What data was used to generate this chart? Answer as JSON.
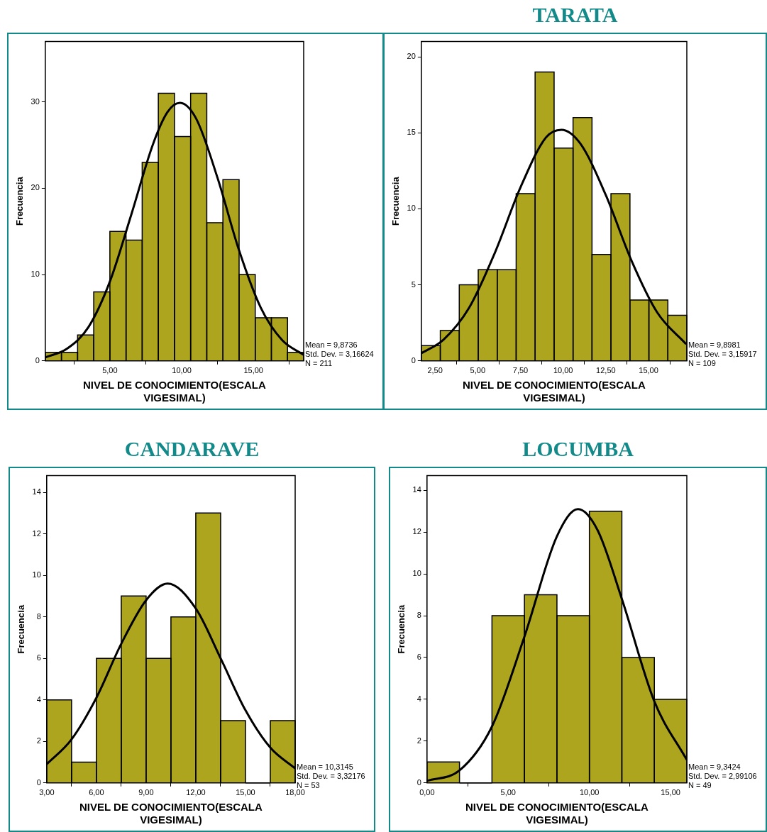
{
  "chart_data": [
    {
      "type": "histogram",
      "xlabel": "NIVEL DE CONOCIMIENTO(ESCALA VIGESIMAL)",
      "ylabel": "Frecuencia",
      "color": "#ada51e",
      "bins": [
        0.5,
        1.625,
        2.75,
        3.875,
        5,
        6.125,
        7.25,
        8.375,
        9.5,
        10.625,
        11.75,
        12.875,
        14,
        15.125,
        16.25,
        17.375,
        18.5
      ],
      "values": [
        1,
        1,
        3,
        8,
        15,
        14,
        23,
        31,
        26,
        31,
        16,
        21,
        10,
        5,
        5,
        1
      ],
      "series": [
        {
          "type": "line",
          "color": "#000000",
          "x": [
            0.5,
            2,
            3.5,
            5,
            6.5,
            8,
            9,
            9.87,
            11,
            12.5,
            14,
            15.5,
            17,
            18.5
          ],
          "values": [
            0.4,
            1.4,
            3.9,
            9.2,
            17,
            25.1,
            28.8,
            29.9,
            28.1,
            21.2,
            12.8,
            6.2,
            2.4,
            0.7
          ]
        }
      ],
      "xlim": [
        0.5,
        18.5
      ],
      "xticks": [
        {
          "value": 5,
          "label": "5,00"
        },
        {
          "value": 10,
          "label": "10,00"
        },
        {
          "value": 15,
          "label": "15,00"
        }
      ],
      "ylim": [
        0,
        37
      ],
      "yticks": [
        0,
        10,
        20,
        30
      ],
      "grid": false,
      "annotations": [
        "Mean = 9,8736",
        "Std. Dev. = 3,16624",
        "N = 211"
      ]
    },
    {
      "type": "histogram",
      "title": "TARATA",
      "xlabel": "NIVEL DE CONOCIMIENTO(ESCALA VIGESIMAL)",
      "ylabel": "Frecuencia",
      "color": "#ada51e",
      "bins": [
        1.7,
        2.81,
        3.92,
        5.03,
        6.14,
        7.25,
        8.36,
        9.47,
        10.58,
        11.69,
        12.8,
        13.91,
        15.02,
        16.13,
        17.24
      ],
      "values": [
        1,
        2,
        5,
        6,
        6,
        11,
        19,
        14,
        16,
        7,
        11,
        4,
        4,
        3
      ],
      "series": [
        {
          "type": "line",
          "color": "#000000",
          "x": [
            1.7,
            3,
            4.5,
            6,
            7.5,
            9,
            9.9,
            11,
            12.5,
            14,
            15.5,
            17.2
          ],
          "values": [
            0.5,
            1.4,
            3.5,
            7.1,
            11.4,
            14.7,
            15.2,
            14.3,
            10.9,
            6.6,
            3.2,
            1.1
          ]
        }
      ],
      "xlim": [
        1.7,
        17.24
      ],
      "xticks": [
        {
          "value": 2.5,
          "label": "2,50"
        },
        {
          "value": 5,
          "label": "5,00"
        },
        {
          "value": 7.5,
          "label": "7,50"
        },
        {
          "value": 10,
          "label": "10,00"
        },
        {
          "value": 12.5,
          "label": "12,50"
        },
        {
          "value": 15,
          "label": "15,00"
        }
      ],
      "ylim": [
        0,
        21
      ],
      "yticks": [
        0,
        5,
        10,
        15,
        20
      ],
      "grid": false,
      "annotations": [
        "Mean = 9,8981",
        "Std. Dev. = 3,15917",
        "N = 109"
      ]
    },
    {
      "type": "histogram",
      "title": "CANDARAVE",
      "xlabel": "NIVEL DE CONOCIMIENTO(ESCALA VIGESIMAL)",
      "ylabel": "Frecuencia",
      "color": "#ada51e",
      "bins": [
        3,
        4.5,
        6,
        7.5,
        9,
        10.5,
        12,
        13.5,
        15,
        16.5,
        18
      ],
      "values": [
        4,
        1,
        6,
        9,
        6,
        8,
        13,
        3,
        0,
        3
      ],
      "series": [
        {
          "type": "line",
          "color": "#000000",
          "x": [
            3,
            4.5,
            6,
            7.5,
            9,
            10.3,
            12,
            13.5,
            15,
            16.5,
            18
          ],
          "values": [
            0.9,
            2.1,
            4.1,
            6.7,
            8.8,
            9.6,
            8.4,
            6,
            3.5,
            1.7,
            0.7
          ]
        }
      ],
      "xlim": [
        3,
        18
      ],
      "xticks": [
        {
          "value": 3,
          "label": "3,00"
        },
        {
          "value": 6,
          "label": "6,00"
        },
        {
          "value": 9,
          "label": "9,00"
        },
        {
          "value": 12,
          "label": "12,00"
        },
        {
          "value": 15,
          "label": "15,00"
        },
        {
          "value": 18,
          "label": "18,00"
        }
      ],
      "ylim": [
        0,
        14.8
      ],
      "yticks": [
        0,
        2,
        4,
        6,
        8,
        10,
        12,
        14
      ],
      "grid": false,
      "annotations": [
        "Mean = 10,3145",
        "Std. Dev. = 3,32176",
        "N = 53"
      ]
    },
    {
      "type": "histogram",
      "title": "LOCUMBA",
      "xlabel": "NIVEL DE CONOCIMIENTO(ESCALA VIGESIMAL)",
      "ylabel": "Frecuencia",
      "color": "#ada51e",
      "bins": [
        0,
        2,
        4,
        6,
        8,
        10,
        12,
        14,
        16
      ],
      "values": [
        1,
        0,
        8,
        9,
        8,
        13,
        6,
        4
      ],
      "series": [
        {
          "type": "line",
          "color": "#000000",
          "x": [
            0,
            2,
            4,
            6,
            8,
            9.3,
            10.5,
            12,
            14,
            16
          ],
          "values": [
            0.1,
            0.6,
            2.7,
            7,
            11.8,
            13.1,
            12.1,
            8.8,
            3.9,
            1.1
          ]
        }
      ],
      "xlim": [
        0,
        16
      ],
      "xticks": [
        {
          "value": 0,
          "label": "0,00"
        },
        {
          "value": 5,
          "label": "5,00"
        },
        {
          "value": 10,
          "label": "10,00"
        },
        {
          "value": 15,
          "label": "15,00"
        }
      ],
      "ylim": [
        0,
        14.7
      ],
      "yticks": [
        0,
        2,
        4,
        6,
        8,
        10,
        12,
        14
      ],
      "grid": false,
      "annotations": [
        "Mean = 9,3424",
        "Std. Dev. = 2,99106",
        "N = 49"
      ]
    }
  ]
}
